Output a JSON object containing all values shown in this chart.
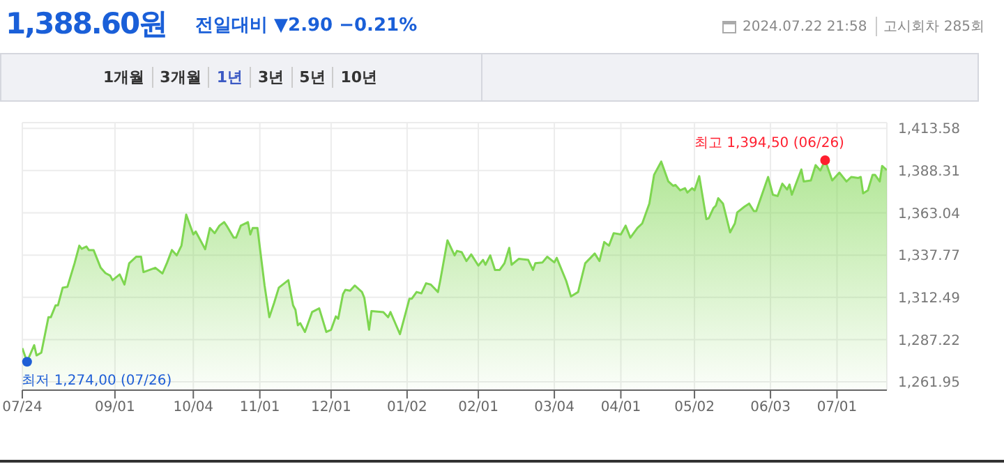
{
  "chart_data": {
    "type": "area",
    "title": "1,388.60원",
    "subtitle": "전일대비 ▼2.90 −0.21%",
    "annotations": [
      "2024.07.22 21:58",
      "고시회차 285회",
      "1개월",
      "3개월",
      "1년",
      "3년",
      "5년",
      "10년",
      {
        "text": "최저 1,274,00 (07/26)",
        "x": "2023-07-26",
        "y": 1274
      },
      {
        "text": "최고 1,394,50 (06/26)",
        "x": "2024-06-26",
        "y": 1394.5
      }
    ],
    "x": [
      "2023-07-24",
      "2023-07-26",
      "2023-07-29",
      "2023-07-30",
      "2023-08-01",
      "2023-08-04",
      "2023-08-05",
      "2023-08-07",
      "2023-08-08",
      "2023-08-10",
      "2023-08-12",
      "2023-08-15",
      "2023-08-17",
      "2023-08-18",
      "2023-08-20",
      "2023-08-21",
      "2023-08-23",
      "2023-08-26",
      "2023-08-28",
      "2023-08-30",
      "2023-08-31",
      "2023-09-03",
      "2023-09-05",
      "2023-09-07",
      "2023-09-10",
      "2023-09-12",
      "2023-09-13",
      "2023-09-18",
      "2023-09-21",
      "2023-09-23",
      "2023-09-25",
      "2023-09-27",
      "2023-09-29",
      "2023-10-01",
      "2023-10-04",
      "2023-10-05",
      "2023-10-09",
      "2023-10-11",
      "2023-10-13",
      "2023-10-15",
      "2023-10-17",
      "2023-10-18",
      "2023-10-21",
      "2023-10-22",
      "2023-10-24",
      "2023-10-27",
      "2023-10-28",
      "2023-10-29",
      "2023-10-31",
      "2023-11-03",
      "2023-11-05",
      "2023-11-07",
      "2023-11-09",
      "2023-11-13",
      "2023-11-15",
      "2023-11-16",
      "2023-11-17",
      "2023-11-18",
      "2023-11-20",
      "2023-11-23",
      "2023-11-26",
      "2023-11-29",
      "2023-12-01",
      "2023-12-03",
      "2023-12-04",
      "2023-12-06",
      "2023-12-07",
      "2023-12-09",
      "2023-12-11",
      "2023-12-14",
      "2023-12-15",
      "2023-12-17",
      "2023-12-18",
      "2023-12-23",
      "2023-12-25",
      "2023-12-26",
      "2023-12-28",
      "2023-12-30",
      "2024-01-03",
      "2024-01-04",
      "2024-01-06",
      "2024-01-08",
      "2024-01-10",
      "2024-01-12",
      "2024-01-15",
      "2024-01-16",
      "2024-01-19",
      "2024-01-22",
      "2024-01-23",
      "2024-01-25",
      "2024-01-27",
      "2024-01-29",
      "2024-02-01",
      "2024-02-03",
      "2024-02-04",
      "2024-02-06",
      "2024-02-08",
      "2024-02-10",
      "2024-02-12",
      "2024-02-14",
      "2024-02-15",
      "2024-02-18",
      "2024-02-22",
      "2024-02-24",
      "2024-02-25",
      "2024-02-28",
      "2024-03-01",
      "2024-03-04",
      "2024-03-05",
      "2024-03-09",
      "2024-03-11",
      "2024-03-14",
      "2024-03-17",
      "2024-03-21",
      "2024-03-23",
      "2024-03-25",
      "2024-03-27",
      "2024-03-29",
      "2024-04-01",
      "2024-04-03",
      "2024-04-05",
      "2024-04-08",
      "2024-04-10",
      "2024-04-13",
      "2024-04-15",
      "2024-04-18",
      "2024-04-21",
      "2024-04-23",
      "2024-04-24",
      "2024-04-26",
      "2024-04-28",
      "2024-04-29",
      "2024-05-01",
      "2024-05-02",
      "2024-05-04",
      "2024-05-07",
      "2024-05-08",
      "2024-05-10",
      "2024-05-11",
      "2024-05-12",
      "2024-05-14",
      "2024-05-17",
      "2024-05-19",
      "2024-05-20",
      "2024-05-23",
      "2024-05-25",
      "2024-05-27",
      "2024-05-28",
      "2024-06-02",
      "2024-06-04",
      "2024-06-06",
      "2024-06-08",
      "2024-06-10",
      "2024-06-11",
      "2024-06-12",
      "2024-06-16",
      "2024-06-17",
      "2024-06-20",
      "2024-06-22",
      "2024-06-24",
      "2024-06-26",
      "2024-06-29",
      "2024-07-02",
      "2024-07-05",
      "2024-07-07",
      "2024-07-10",
      "2024-07-11",
      "2024-07-12",
      "2024-07-14",
      "2024-07-16",
      "2024-07-17",
      "2024-07-19",
      "2024-07-20",
      "2024-07-22"
    ],
    "series": [
      {
        "color": "#7ed650",
        "values": [
          1282.1,
          1274,
          1283.9,
          1277.8,
          1279.4,
          1300.6,
          1300.6,
          1307.7,
          1307.7,
          1318.3,
          1318.8,
          1332.9,
          1343.4,
          1341.5,
          1342.9,
          1340.8,
          1340.8,
          1330.2,
          1327,
          1325.5,
          1322.8,
          1326.2,
          1320.2,
          1332.9,
          1336.8,
          1336.8,
          1327.6,
          1330.2,
          1326.8,
          1333.4,
          1340.8,
          1337.6,
          1343.4,
          1362,
          1350.1,
          1351.9,
          1341.3,
          1354,
          1350.9,
          1355.4,
          1357.5,
          1355.4,
          1348.2,
          1348.2,
          1355.4,
          1357.5,
          1350.1,
          1354,
          1354,
          1319.6,
          1300.6,
          1309.1,
          1318.3,
          1322.8,
          1307.7,
          1305,
          1295.8,
          1297.1,
          1291.8,
          1303.7,
          1305.9,
          1291.8,
          1293.1,
          1301.1,
          1299.7,
          1314.4,
          1317,
          1316.5,
          1319.6,
          1315.7,
          1312.2,
          1293.1,
          1304.3,
          1303.7,
          1300.6,
          1303.7,
          1297.1,
          1290.5,
          1311.7,
          1311.7,
          1315.7,
          1314.9,
          1320.9,
          1320.1,
          1315.7,
          1322.8,
          1346.6,
          1337.6,
          1340.3,
          1339.5,
          1334.2,
          1338.2,
          1331.5,
          1334.9,
          1332,
          1337.6,
          1328.9,
          1328.9,
          1332.9,
          1342.1,
          1332,
          1335.5,
          1334.9,
          1328.9,
          1332.9,
          1333.4,
          1336.8,
          1333.4,
          1336.1,
          1322.3,
          1313,
          1315.7,
          1332.9,
          1338.7,
          1334.2,
          1345.6,
          1343.4,
          1350.9,
          1350.1,
          1355.4,
          1348.2,
          1354,
          1356.7,
          1368.6,
          1385.8,
          1393.7,
          1381.8,
          1379.2,
          1379.7,
          1376.5,
          1377.8,
          1375.2,
          1377.8,
          1376.5,
          1385,
          1359.3,
          1359.8,
          1365.9,
          1367.3,
          1371.8,
          1368.6,
          1351.4,
          1356.7,
          1363.3,
          1366.7,
          1368.6,
          1364.1,
          1364.1,
          1384.5,
          1373.9,
          1373.1,
          1380.5,
          1377,
          1380,
          1373.9,
          1389,
          1381.8,
          1382.4,
          1391.6,
          1388.4,
          1394.5,
          1382.4,
          1387.1,
          1381.8,
          1384.5,
          1383.9,
          1384.5,
          1374.7,
          1376.5,
          1385.8,
          1385.8,
          1381.8,
          1391.1,
          1388.6
        ]
      }
    ],
    "xlim": [
      "2023-07-24",
      "2024-07-22"
    ],
    "xticks": [
      {
        "value": "2023-07-24",
        "label": "07/24"
      },
      {
        "value": "2023-09-01",
        "label": "09/01"
      },
      {
        "value": "2023-10-04",
        "label": "10/04"
      },
      {
        "value": "2023-11-01",
        "label": "11/01"
      },
      {
        "value": "2023-12-01",
        "label": "12/01"
      },
      {
        "value": "2024-01-02",
        "label": "01/02"
      },
      {
        "value": "2024-02-01",
        "label": "02/01"
      },
      {
        "value": "2024-03-04",
        "label": "03/04"
      },
      {
        "value": "2024-04-01",
        "label": "04/01"
      },
      {
        "value": "2024-05-02",
        "label": "05/02"
      },
      {
        "value": "2024-06-03",
        "label": "06/03"
      },
      {
        "value": "2024-07-01",
        "label": "07/01"
      }
    ],
    "ylim": [
      1257,
      1417
    ],
    "yticks": [
      {
        "value": 1261.95,
        "label": "1,261.95"
      },
      {
        "value": 1287.22,
        "label": "1,287.22"
      },
      {
        "value": 1312.49,
        "label": "1,312.49"
      },
      {
        "value": 1337.77,
        "label": "1,337.77"
      },
      {
        "value": 1363.04,
        "label": "1,363.04"
      },
      {
        "value": 1388.31,
        "label": "1,388.31"
      },
      {
        "value": 1413.58,
        "label": "1,413.58"
      }
    ],
    "grid": true,
    "marker": "none"
  }
}
